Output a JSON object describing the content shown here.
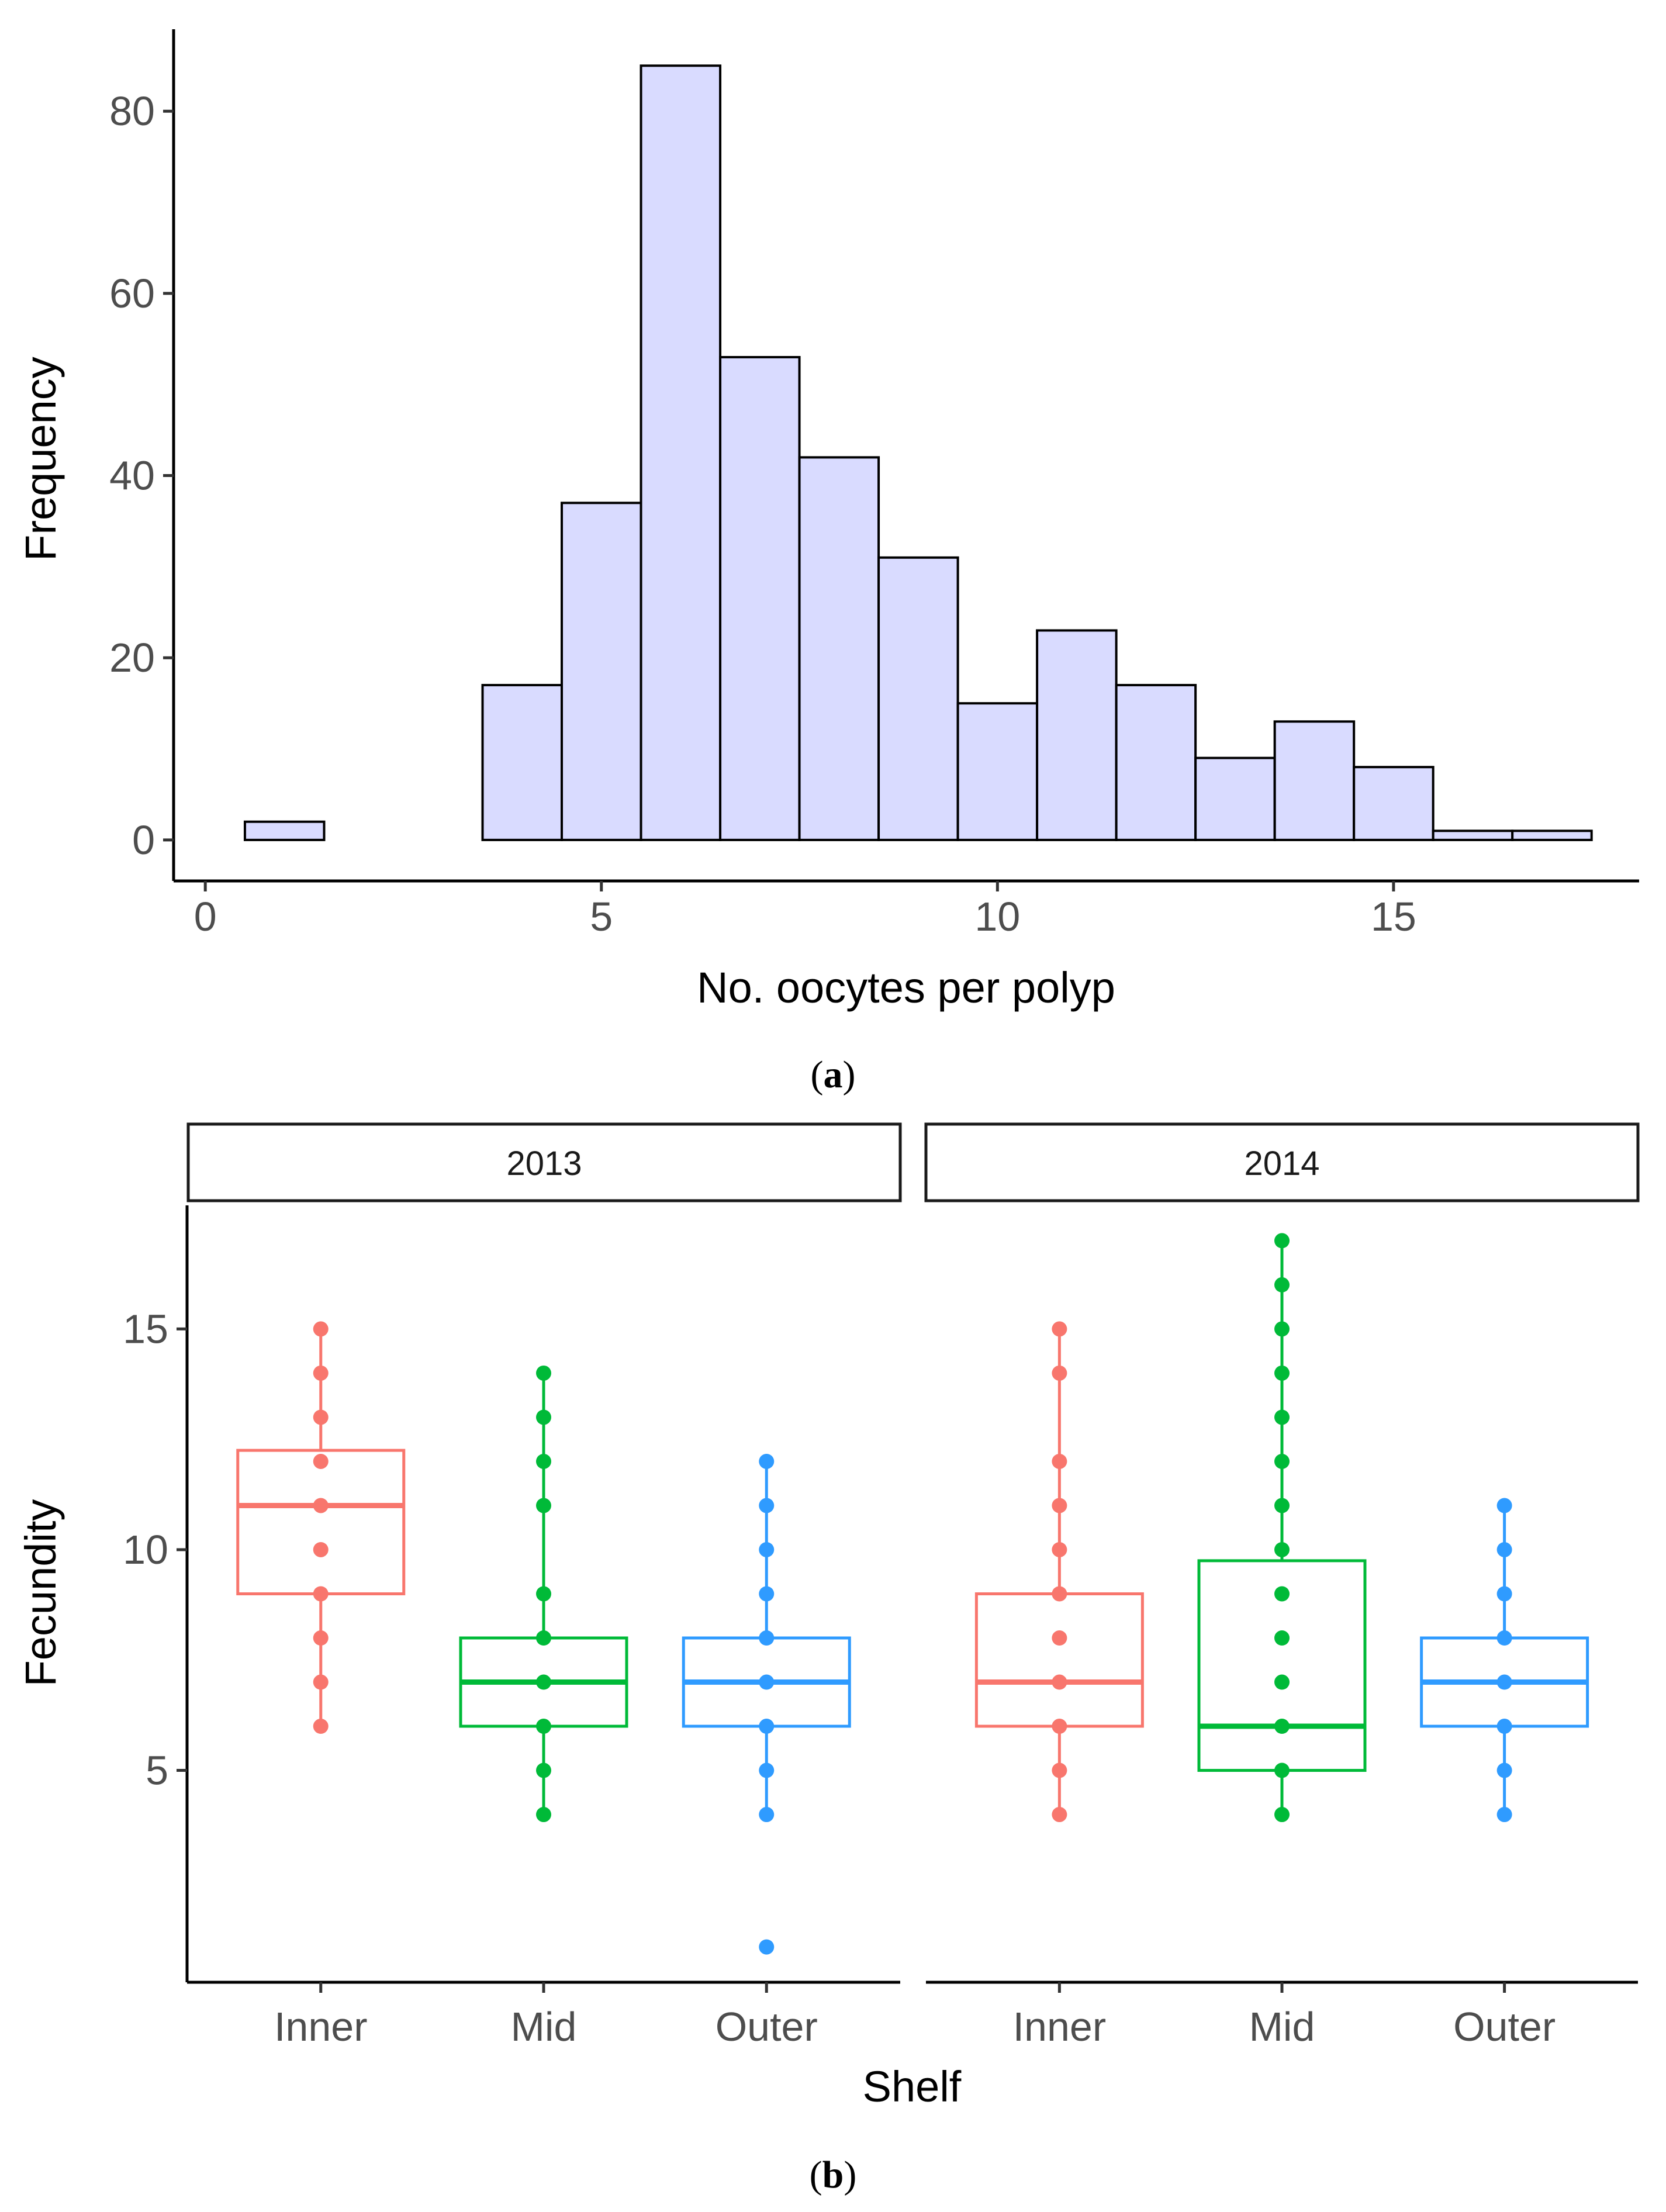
{
  "chart_data": [
    {
      "panel": "a",
      "caption": {
        "open": "(",
        "letter": "a",
        "close": ")"
      },
      "type": "bar",
      "subtype": "histogram",
      "bins": [
        {
          "x": 1,
          "count": 2
        },
        {
          "x": 2,
          "count": 0
        },
        {
          "x": 3,
          "count": 0
        },
        {
          "x": 4,
          "count": 17
        },
        {
          "x": 5,
          "count": 37
        },
        {
          "x": 6,
          "count": 85
        },
        {
          "x": 7,
          "count": 53
        },
        {
          "x": 8,
          "count": 42
        },
        {
          "x": 9,
          "count": 31
        },
        {
          "x": 10,
          "count": 15
        },
        {
          "x": 11,
          "count": 23
        },
        {
          "x": 12,
          "count": 17
        },
        {
          "x": 13,
          "count": 9
        },
        {
          "x": 14,
          "count": 13
        },
        {
          "x": 15,
          "count": 8
        },
        {
          "x": 16,
          "count": 1
        },
        {
          "x": 17,
          "count": 1
        }
      ],
      "bin_width": 1,
      "fill": "#d9dbff",
      "edge": "#000000",
      "xlabel": "No. oocytes per polyp",
      "ylabel": "Frequency",
      "xlim": [
        -0.4,
        18.1
      ],
      "ylim": [
        -4.5,
        89
      ],
      "xticks": [
        {
          "value": 0,
          "label": "0"
        },
        {
          "value": 5,
          "label": "5"
        },
        {
          "value": 10,
          "label": "10"
        },
        {
          "value": 15,
          "label": "15"
        }
      ],
      "yticks": [
        {
          "value": 0,
          "label": "0"
        },
        {
          "value": 20,
          "label": "20"
        },
        {
          "value": 40,
          "label": "40"
        },
        {
          "value": 60,
          "label": "60"
        },
        {
          "value": 80,
          "label": "80"
        }
      ]
    },
    {
      "panel": "b",
      "caption": {
        "open": "(",
        "letter": "b",
        "close": ")"
      },
      "type": "box",
      "xlabel": "Shelf",
      "ylabel": "Fecundity",
      "ylim": [
        0.2,
        17.8
      ],
      "yticks": [
        {
          "value": 5,
          "label": "5"
        },
        {
          "value": 10,
          "label": "10"
        },
        {
          "value": 15,
          "label": "15"
        }
      ],
      "categories": [
        "Inner",
        "Mid",
        "Outer"
      ],
      "colors": {
        "Inner": "#f8766d",
        "Mid": "#00ba38",
        "Outer": "#2f9bff"
      },
      "facets": [
        {
          "label": "2013",
          "groups": [
            {
              "shelf": "Inner",
              "q1": 9,
              "median": 11,
              "q3": 12.25,
              "whisker_low": 6,
              "whisker_high": 15,
              "points": [
                6,
                7,
                8,
                9,
                10,
                11,
                12,
                13,
                14,
                15
              ]
            },
            {
              "shelf": "Mid",
              "q1": 6,
              "median": 7,
              "q3": 8,
              "whisker_low": 4,
              "whisker_high": 14,
              "points": [
                4,
                5,
                6,
                7,
                8,
                9,
                11,
                12,
                13,
                14
              ]
            },
            {
              "shelf": "Outer",
              "q1": 6,
              "median": 7,
              "q3": 8,
              "whisker_low": 4,
              "whisker_high": 12,
              "points": [
                1,
                4,
                5,
                6,
                7,
                8,
                9,
                10,
                11,
                12
              ]
            }
          ]
        },
        {
          "label": "2014",
          "groups": [
            {
              "shelf": "Inner",
              "q1": 6,
              "median": 7,
              "q3": 9,
              "whisker_low": 4,
              "whisker_high": 15,
              "points": [
                4,
                5,
                6,
                7,
                8,
                9,
                10,
                11,
                12,
                14,
                15
              ]
            },
            {
              "shelf": "Mid",
              "q1": 5,
              "median": 6,
              "q3": 9.75,
              "whisker_low": 4,
              "whisker_high": 17,
              "points": [
                4,
                5,
                6,
                7,
                8,
                9,
                10,
                11,
                12,
                13,
                14,
                15,
                16,
                17
              ]
            },
            {
              "shelf": "Outer",
              "q1": 6,
              "median": 7,
              "q3": 8,
              "whisker_low": 4,
              "whisker_high": 11,
              "points": [
                4,
                5,
                6,
                7,
                8,
                9,
                10,
                11
              ]
            }
          ]
        }
      ]
    }
  ]
}
